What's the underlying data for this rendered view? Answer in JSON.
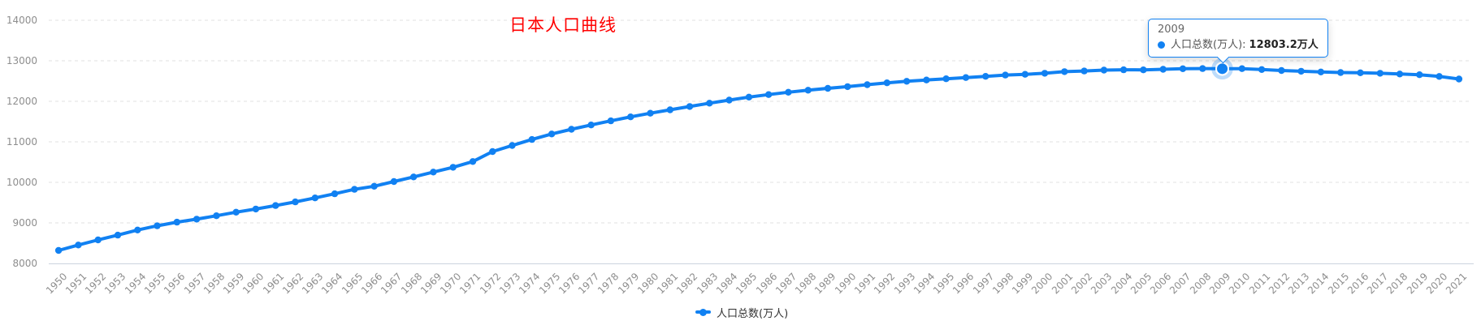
{
  "chart_data": {
    "type": "line",
    "title": "日本人口曲线",
    "title_color": "#ff0000",
    "line_color": "#1181f2",
    "categories": [
      "1950",
      "1951",
      "1952",
      "1953",
      "1954",
      "1955",
      "1956",
      "1957",
      "1958",
      "1959",
      "1960",
      "1961",
      "1962",
      "1963",
      "1964",
      "1965",
      "1966",
      "1967",
      "1968",
      "1969",
      "1970",
      "1971",
      "1972",
      "1973",
      "1974",
      "1975",
      "1976",
      "1977",
      "1978",
      "1979",
      "1980",
      "1981",
      "1982",
      "1983",
      "1984",
      "1985",
      "1986",
      "1987",
      "1988",
      "1989",
      "1990",
      "1991",
      "1992",
      "1993",
      "1994",
      "1995",
      "1996",
      "1997",
      "1998",
      "1999",
      "2000",
      "2001",
      "2002",
      "2003",
      "2004",
      "2005",
      "2006",
      "2007",
      "2008",
      "2009",
      "2010",
      "2011",
      "2012",
      "2013",
      "2014",
      "2015",
      "2016",
      "2017",
      "2018",
      "2019",
      "2020",
      "2021"
    ],
    "series": [
      {
        "name": "人口总数(万人)",
        "values": [
          8320.0,
          8454.1,
          8580.8,
          8698.1,
          8823.9,
          8927.6,
          9017.2,
          9092.8,
          9176.7,
          9264.1,
          9341.9,
          9428.7,
          9518.1,
          9615.6,
          9718.2,
          9827.5,
          9903.6,
          10019.6,
          10133.1,
          10253.6,
          10372.0,
          10514.5,
          10759.5,
          10910.4,
          11057.3,
          11194.0,
          11309.4,
          11416.5,
          11519.0,
          11615.5,
          11706.0,
          11790.2,
          11872.8,
          11953.6,
          12030.5,
          12104.9,
          12166.0,
          12223.9,
          12274.5,
          12320.5,
          12361.1,
          12410.1,
          12456.7,
          12493.8,
          12526.5,
          12557.0,
          12585.9,
          12615.7,
          12647.2,
          12666.7,
          12692.6,
          12731.6,
          12748.6,
          12769.4,
          12778.7,
          12776.8,
          12790.1,
          12803.3,
          12808.4,
          12803.2,
          12805.7,
          12783.4,
          12759.3,
          12741.4,
          12723.7,
          12709.5,
          12704.2,
          12691.9,
          12674.9,
          12655.5,
          12614.6,
          12550.2
        ]
      }
    ],
    "ylim": [
      8000,
      14000
    ],
    "y_ticks": [
      8000,
      9000,
      10000,
      11000,
      12000,
      13000,
      14000
    ],
    "x_label_rotate": 45,
    "grid": "horizontal-dashed",
    "legend_position": "bottom-center",
    "emphasis_index": 59
  },
  "tooltip": {
    "category": "2009",
    "series_name": "人口总数(万人):",
    "value": "12803.2万人",
    "border_color": "#1181f2",
    "background": "#ffffff"
  }
}
